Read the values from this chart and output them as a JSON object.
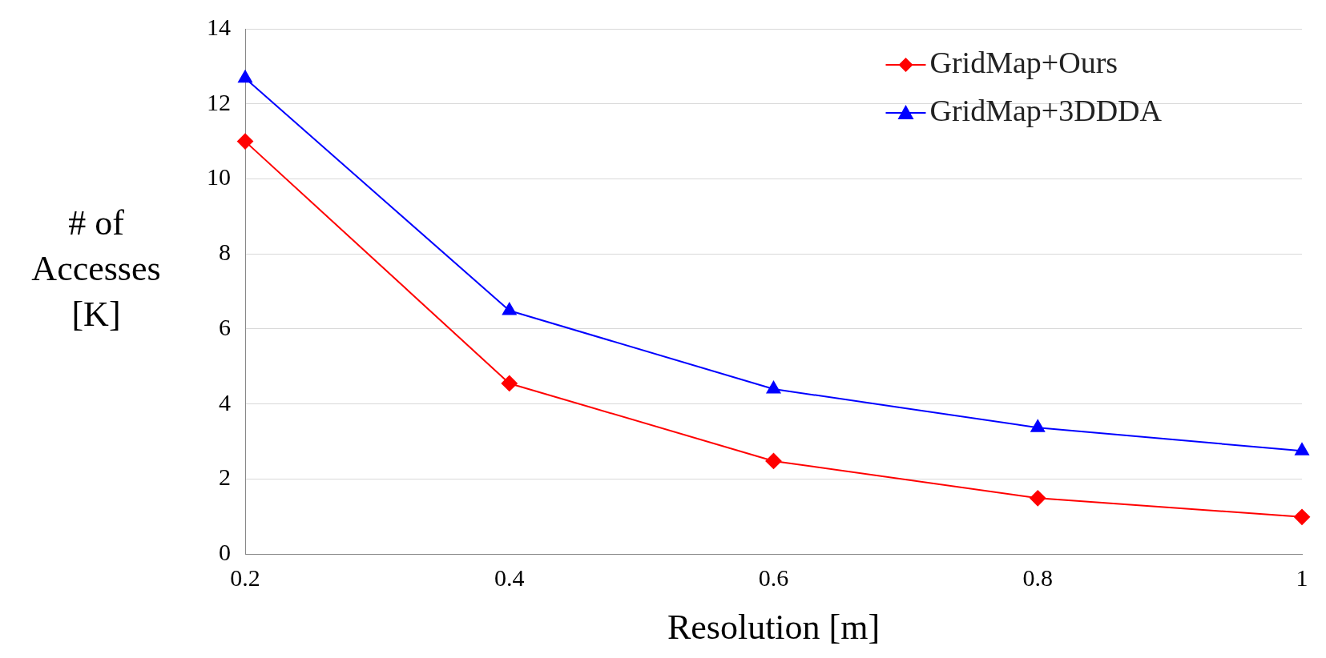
{
  "chart_data": {
    "type": "line",
    "xlabel": "Resolution [m]",
    "ylabel": "# of Accesses [K]",
    "x": [
      0.2,
      0.4,
      0.6,
      0.8,
      1
    ],
    "series": [
      {
        "name": "GridMap+Ours",
        "color": "#ff0000",
        "marker": "diamond",
        "values": [
          11.0,
          4.55,
          2.48,
          1.49,
          0.99
        ]
      },
      {
        "name": "GridMap+3DDDA",
        "color": "#0000ff",
        "marker": "triangle",
        "values": [
          12.68,
          6.49,
          4.4,
          3.37,
          2.75
        ]
      }
    ],
    "xlim": [
      0.2,
      1
    ],
    "xticks": [
      0.2,
      0.4,
      0.6,
      0.8,
      1
    ],
    "ylim": [
      0,
      14
    ],
    "yticks": [
      0,
      2,
      4,
      6,
      8,
      10,
      12,
      14
    ],
    "grid": "y",
    "legend": "top right",
    "line_style": "solid"
  }
}
